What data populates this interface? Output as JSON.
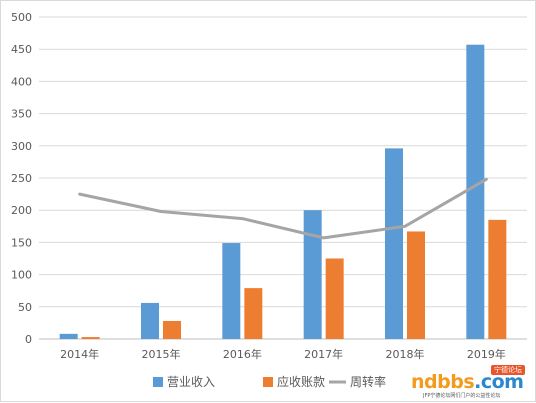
{
  "chart_data": {
    "type": "bar",
    "categories": [
      "2014年",
      "2015年",
      "2016年",
      "2017年",
      "2018年",
      "2019年"
    ],
    "series": [
      {
        "name": "营业收入",
        "type": "bar",
        "color": "#5b9bd5",
        "values": [
          8,
          56,
          149,
          200,
          296,
          457
        ]
      },
      {
        "name": "应收账款",
        "type": "bar",
        "color": "#ed7d31",
        "values": [
          3,
          28,
          79,
          125,
          167,
          185
        ]
      },
      {
        "name": "周转率",
        "type": "line",
        "color": "#a5a5a5",
        "values": [
          225,
          198,
          187,
          157,
          175,
          248
        ]
      }
    ],
    "yticks": [
      "0",
      "50",
      "100",
      "150",
      "200",
      "250",
      "300",
      "350",
      "400",
      "450",
      "500"
    ],
    "ylim": [
      0,
      500
    ],
    "grid": true,
    "legend_position": "bottom",
    "title": "",
    "xlabel": "",
    "ylabel": ""
  },
  "watermark": {
    "tag": "宁德论坛",
    "word_a": "ndbbs",
    "word_b": ".com",
    "subtitle": "JFP宁德论坛网们门户的公益性论坛"
  }
}
